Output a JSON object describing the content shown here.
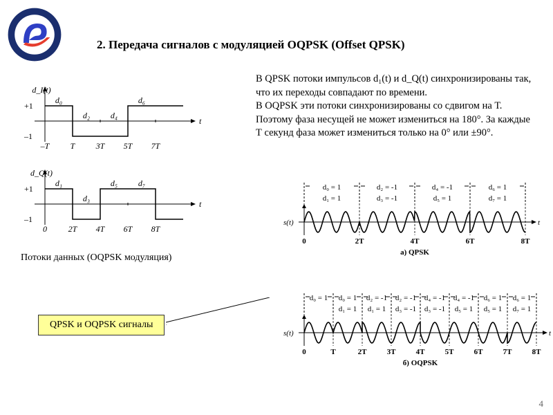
{
  "title": "2. Передача сигналов с модуляцией OQPSK (Offset QPSK)",
  "paragraph": "В QPSK потоки импульсов d₁(t) и d_Q(t) синхронизированы так, что их переходы совпадают по времени.\nВ OQPSK эти потоки синхронизированы со сдвигом на Т. Поэтому фаза несущей не может измениться на 180°. За каждые Т секунд фаза может измениться только на 0° или ±90°.",
  "pulse_caption": "Потоки данных (OQPSK модуляция)",
  "callout_text": "QPSK и OQPSK сигналы",
  "page_num": "4",
  "logo": {
    "outer_ring": "#1a2e6e",
    "inner_bg": "#ffffff",
    "mark_blue": "#2e3fc4",
    "mark_red": "#e53d2e",
    "text_color": "#ffffff"
  },
  "pulse_I": {
    "label": "d_I(t)",
    "y_hi": "+1",
    "y_lo": "–1",
    "x_ticks": [
      "–T",
      "T",
      "3T",
      "5T",
      "7T"
    ],
    "axis_var": "t",
    "bit_labels": [
      "d₀",
      "d₂",
      "d₄",
      "d₆"
    ],
    "values": [
      1,
      -1,
      -1,
      1,
      1
    ],
    "segment_width": 40,
    "line_color": "#000",
    "line_width": 1.5,
    "font_size": 12
  },
  "pulse_Q": {
    "label": "d_Q(t)",
    "y_hi": "+1",
    "y_lo": "–1",
    "x_ticks": [
      "0",
      "2T",
      "4T",
      "6T",
      "8T"
    ],
    "axis_var": "t",
    "bit_labels": [
      "d₁",
      "d₃",
      "d₅",
      "d₇"
    ],
    "values": [
      1,
      -1,
      1,
      1,
      -1
    ],
    "segment_width": 40,
    "line_color": "#000",
    "line_width": 1.5,
    "font_size": 12
  },
  "wave_a": {
    "bits_top": [
      [
        "d₀",
        "1"
      ],
      [
        "d₂",
        "-1"
      ],
      [
        "d₄",
        "-1"
      ],
      [
        "d₆",
        "1"
      ]
    ],
    "bits_bottom": [
      [
        "d₁",
        "1"
      ],
      [
        "d₃",
        "-1"
      ],
      [
        "d₅",
        "1"
      ],
      [
        "d₇",
        "1"
      ]
    ],
    "x_ticks": [
      "0",
      "2T",
      "4T",
      "6T",
      "8T"
    ],
    "caption": "а) QPSK",
    "signal_label": "s(t)",
    "axis_var": "t",
    "cycles_per_segment": 3,
    "phase_shifts_deg": [
      0,
      180,
      270,
      180
    ],
    "segment_width": 80,
    "amplitude": 15,
    "line_color": "#000",
    "line_width": 1.6,
    "dash": "3,2",
    "font_size": 11
  },
  "wave_b": {
    "bits_top": [
      [
        "d₀",
        "1"
      ],
      [
        "d₀",
        "1"
      ],
      [
        "d₂",
        "-1"
      ],
      [
        "d₂",
        "-1"
      ],
      [
        "d₄",
        "-1"
      ],
      [
        "d₄",
        "-1"
      ],
      [
        "d₆",
        "1"
      ],
      [
        "d₆",
        "1"
      ]
    ],
    "bits_bottom": [
      [
        "",
        ""
      ],
      [
        "d₁",
        "1"
      ],
      [
        "d₁",
        "1"
      ],
      [
        "d₃",
        "-1"
      ],
      [
        "d₃",
        "-1"
      ],
      [
        "d₅",
        "1"
      ],
      [
        "d₅",
        "1"
      ],
      [
        "d₇",
        "1"
      ]
    ],
    "x_ticks": [
      "0",
      "T",
      "2T",
      "3T",
      "4T",
      "5T",
      "6T",
      "7T",
      "8T"
    ],
    "caption": "б) OQPSK",
    "signal_label": "s(t)",
    "axis_var": "t",
    "cycles_per_segment": 1.5,
    "phase_shifts_deg": [
      0,
      0,
      90,
      180,
      270,
      180,
      180,
      90
    ],
    "segment_width": 42,
    "amplitude": 15,
    "line_color": "#000",
    "line_width": 1.6,
    "dash": "3,2",
    "font_size": 11
  }
}
